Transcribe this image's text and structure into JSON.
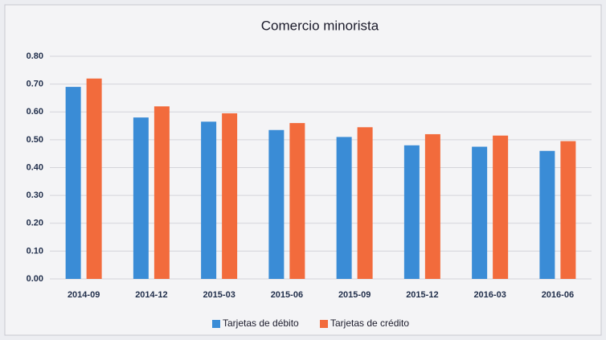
{
  "chart_data": {
    "type": "bar",
    "title": "Comercio minorista",
    "categories": [
      "2014-09",
      "2014-12",
      "2015-03",
      "2015-06",
      "2015-09",
      "2015-12",
      "2016-03",
      "2016-06"
    ],
    "series": [
      {
        "name": "Tarjetas de débito",
        "color": "#3a8cd6",
        "values": [
          0.69,
          0.58,
          0.565,
          0.535,
          0.51,
          0.48,
          0.475,
          0.46
        ]
      },
      {
        "name": "Tarjetas de crédito",
        "color": "#f26b3c",
        "values": [
          0.72,
          0.62,
          0.595,
          0.56,
          0.545,
          0.52,
          0.515,
          0.495
        ]
      }
    ],
    "ylim": [
      0,
      0.8
    ],
    "yticks": [
      {
        "value": 0,
        "label": "0.00"
      },
      {
        "value": 0.1,
        "label": "0.10"
      },
      {
        "value": 0.2,
        "label": "0.20"
      },
      {
        "value": 0.3,
        "label": "0.30"
      },
      {
        "value": 0.4,
        "label": "0.40"
      },
      {
        "value": 0.5,
        "label": "0.50"
      },
      {
        "value": 0.6,
        "label": "0.60"
      },
      {
        "value": 0.7,
        "label": "0.70"
      },
      {
        "value": 0.8,
        "label": "0.80"
      }
    ],
    "grid": true,
    "legend": "bottom"
  }
}
